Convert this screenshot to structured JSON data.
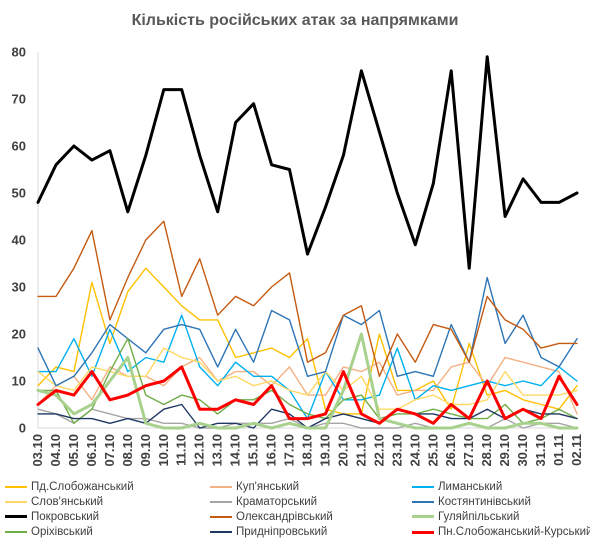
{
  "chart_data": {
    "type": "line",
    "title": "Кількість російських атак за напрямками",
    "xlabel": "",
    "ylabel": "",
    "ylim": [
      0,
      80
    ],
    "yticks": [
      0,
      10,
      20,
      30,
      40,
      50,
      60,
      70,
      80
    ],
    "grid": false,
    "legend_position": "bottom",
    "x": [
      "03.10",
      "04.10",
      "05.10",
      "06.10",
      "07.10",
      "08.10",
      "09.10",
      "10.10",
      "11.10",
      "12.10",
      "13.10",
      "14.10",
      "15.10",
      "16.10",
      "17.10",
      "18.10",
      "19.10",
      "20.10",
      "21.10",
      "22.10",
      "23.10",
      "24.10",
      "25.10",
      "26.10",
      "27.10",
      "28.10",
      "29.10",
      "30.10",
      "31.10",
      "01.11",
      "02.11"
    ],
    "x_tick_labels": [
      "03.10",
      "04.10",
      "05.10",
      "06.10",
      "07.10",
      "08.10",
      "09.10",
      "10.10",
      "11.10",
      "12.10",
      "13.10",
      "14.10",
      "15.10",
      "16.10",
      "17.10",
      "18.10",
      "19.10",
      "20.10",
      "21.10",
      "22.10",
      "23.10",
      "24.10",
      "25.10",
      "26.10",
      "27.10",
      "28.10",
      "29.10",
      "30.10",
      "31.10",
      "01.11",
      "02.11"
    ],
    "series": [
      {
        "name": "Пд.Слобожанський",
        "color": "#ffc000",
        "width": 1.4,
        "values": [
          9,
          13,
          12,
          31,
          18,
          29,
          34,
          30,
          26,
          23,
          23,
          15,
          16,
          17,
          15,
          19,
          4,
          3,
          3,
          20,
          8,
          8,
          10,
          4,
          18,
          7,
          8,
          6,
          5,
          4,
          9
        ]
      },
      {
        "name": "Куп'янський",
        "color": "#f4b183",
        "width": 1.4,
        "values": [
          5,
          9,
          11,
          6,
          13,
          11,
          11,
          9,
          13,
          15,
          10,
          12,
          12,
          9,
          13,
          7,
          7,
          13,
          12,
          14,
          7,
          8,
          8,
          13,
          14,
          9,
          15,
          14,
          13,
          12,
          3
        ]
      },
      {
        "name": "Лиманський",
        "color": "#00b0f0",
        "width": 1.4,
        "values": [
          12,
          12,
          19,
          11,
          21,
          12,
          15,
          14,
          24,
          13,
          9,
          14,
          11,
          11,
          8,
          2,
          12,
          6,
          6,
          7,
          17,
          6,
          9,
          8,
          9,
          10,
          9,
          10,
          9,
          13,
          10
        ]
      },
      {
        "name": "Слов'янський",
        "color": "#ffd966",
        "width": 1.4,
        "values": [
          12,
          9,
          8,
          13,
          12,
          11,
          11,
          17,
          15,
          14,
          10,
          11,
          9,
          10,
          8,
          7,
          12,
          8,
          11,
          4,
          4,
          6,
          7,
          5,
          5,
          6,
          12,
          7,
          7,
          7,
          8
        ]
      },
      {
        "name": "Краматорський",
        "color": "#a5a5a5",
        "width": 1.4,
        "values": [
          4,
          3,
          1,
          4,
          3,
          2,
          2,
          1,
          1,
          0,
          0,
          1,
          1,
          1,
          2,
          0,
          1,
          1,
          0,
          0,
          0,
          1,
          0,
          0,
          1,
          0,
          2,
          0,
          1,
          1,
          0
        ]
      },
      {
        "name": "Костянтинівський",
        "color": "#2e75b6",
        "width": 1.4,
        "values": [
          17,
          9,
          11,
          16,
          22,
          19,
          16,
          21,
          22,
          21,
          13,
          21,
          14,
          25,
          23,
          11,
          12,
          24,
          22,
          25,
          11,
          12,
          11,
          22,
          14,
          32,
          18,
          24,
          15,
          13,
          19
        ]
      },
      {
        "name": "Покровський",
        "color": "#000000",
        "width": 3,
        "values": [
          48,
          56,
          60,
          57,
          59,
          46,
          58,
          72,
          72,
          58,
          46,
          65,
          69,
          56,
          55,
          37,
          47,
          58,
          76,
          63,
          50,
          39,
          52,
          76,
          34,
          79,
          45,
          53,
          48,
          48,
          50
        ]
      },
      {
        "name": "Олександрівський",
        "color": "#c55a11",
        "width": 1.4,
        "values": [
          28,
          28,
          34,
          42,
          23,
          32,
          40,
          44,
          28,
          36,
          24,
          28,
          26,
          30,
          33,
          14,
          16,
          24,
          26,
          11,
          20,
          14,
          22,
          21,
          14,
          28,
          23,
          21,
          17,
          18,
          18
        ]
      },
      {
        "name": "Гуляйпільський",
        "color": "#a9d18e",
        "width": 3,
        "values": [
          8,
          7,
          3,
          5,
          10,
          15,
          1,
          0,
          0,
          1,
          0,
          0,
          1,
          0,
          1,
          0,
          0,
          8,
          20,
          2,
          1,
          0,
          0,
          0,
          1,
          0,
          0,
          1,
          1,
          0,
          0
        ]
      },
      {
        "name": "Оріхівський",
        "color": "#70ad47",
        "width": 1.4,
        "values": [
          8,
          8,
          1,
          4,
          12,
          19,
          7,
          5,
          7,
          6,
          3,
          6,
          6,
          8,
          5,
          3,
          2,
          6,
          7,
          2,
          3,
          3,
          4,
          3,
          2,
          2,
          5,
          1,
          2,
          4,
          2
        ]
      },
      {
        "name": "Придніпровський",
        "color": "#1f3864",
        "width": 1.4,
        "values": [
          3,
          3,
          2,
          2,
          1,
          2,
          1,
          4,
          5,
          0,
          1,
          1,
          0,
          4,
          3,
          0,
          2,
          3,
          2,
          1,
          4,
          3,
          3,
          2,
          2,
          4,
          2,
          4,
          3,
          3,
          2
        ]
      },
      {
        "name": "Пн.Слобожанський-Курський",
        "color": "#ff0000",
        "width": 3,
        "values": [
          5,
          8,
          7,
          12,
          6,
          7,
          9,
          10,
          13,
          4,
          4,
          6,
          5,
          9,
          2,
          2,
          3,
          12,
          3,
          1,
          4,
          3,
          1,
          5,
          2,
          10,
          2,
          4,
          2,
          11,
          5
        ]
      }
    ]
  }
}
